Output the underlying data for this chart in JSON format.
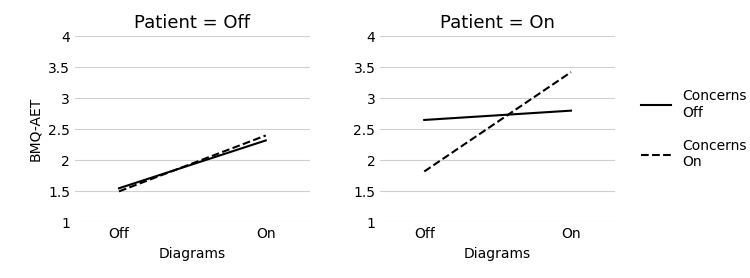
{
  "left_panel": {
    "title": "Patient = Off",
    "concerns_off": [
      1.55,
      2.32
    ],
    "concerns_on": [
      1.5,
      2.4
    ],
    "x_labels": [
      "Off",
      "On"
    ],
    "xlabel": "Diagrams",
    "ylabel": "BMQ-AET",
    "ylim": [
      1,
      4
    ],
    "yticks": [
      1,
      1.5,
      2,
      2.5,
      3,
      3.5,
      4
    ],
    "yticklabels": [
      "1",
      "1.5",
      "2",
      "2.5",
      "3",
      "3.5",
      "4"
    ]
  },
  "right_panel": {
    "title": "Patient = On",
    "concerns_off": [
      2.65,
      2.8
    ],
    "concerns_on": [
      1.82,
      3.42
    ],
    "x_labels": [
      "Off",
      "On"
    ],
    "xlabel": "Diagrams",
    "ylim": [
      1,
      4
    ],
    "yticks": [
      1,
      1.5,
      2,
      2.5,
      3,
      3.5,
      4
    ],
    "yticklabels": [
      "1",
      "1.5",
      "2",
      "2.5",
      "3",
      "3.5",
      "4"
    ]
  },
  "legend_labels": [
    "Concerns\nOff",
    "Concerns\nOn"
  ],
  "line_color": "#000000",
  "grid_color": "#d0d0d0",
  "title_fontsize": 13,
  "label_fontsize": 10,
  "tick_fontsize": 10,
  "legend_fontsize": 10,
  "bg_color": "#ffffff"
}
